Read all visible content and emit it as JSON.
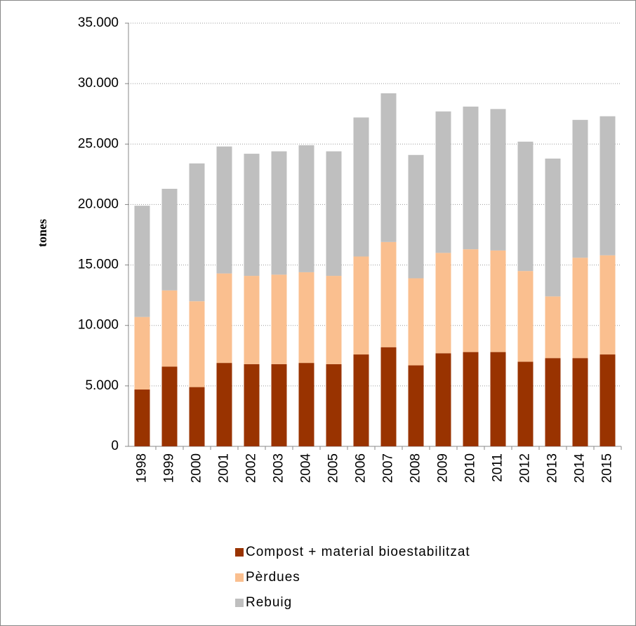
{
  "chart_data": {
    "type": "stacked_bar",
    "y_label": "tones",
    "categories": [
      "1998",
      "1999",
      "2000",
      "2001",
      "2002",
      "2003",
      "2004",
      "2005",
      "2006",
      "2007",
      "2008",
      "2009",
      "2010",
      "2011",
      "2012",
      "2013",
      "2014",
      "2015"
    ],
    "series": [
      {
        "name": "Compost + material bioestabilitzat",
        "color": "#993300",
        "values": [
          4700,
          6600,
          4900,
          6900,
          6800,
          6800,
          6900,
          6800,
          7600,
          8200,
          6700,
          7700,
          7800,
          7800,
          7000,
          7300,
          7300,
          7600
        ]
      },
      {
        "name": "Pèrdues",
        "color": "#fabf8f",
        "values": [
          6000,
          6300,
          7100,
          7400,
          7300,
          7400,
          7500,
          7300,
          8100,
          8700,
          7200,
          8300,
          8500,
          8400,
          7500,
          5100,
          8300,
          8200
        ]
      },
      {
        "name": "Rebuig",
        "color": "#bfbfbf",
        "values": [
          9200,
          8400,
          11400,
          10500,
          10100,
          10200,
          10500,
          10300,
          11500,
          12300,
          10200,
          11700,
          11800,
          11700,
          10700,
          11400,
          11400,
          11500
        ]
      }
    ],
    "ylim": [
      0,
      35000
    ],
    "yticks": [
      0,
      {
        "value": 5000,
        "label": "5.000"
      },
      {
        "value": 10000,
        "label": "10.000"
      },
      {
        "value": 15000,
        "label": "15.000"
      },
      {
        "value": 20000,
        "label": "20.000"
      },
      {
        "value": 25000,
        "label": "25.000"
      },
      {
        "value": 30000,
        "label": "30.000"
      },
      {
        "value": 35000,
        "label": "35.000"
      }
    ],
    "grid": true
  }
}
